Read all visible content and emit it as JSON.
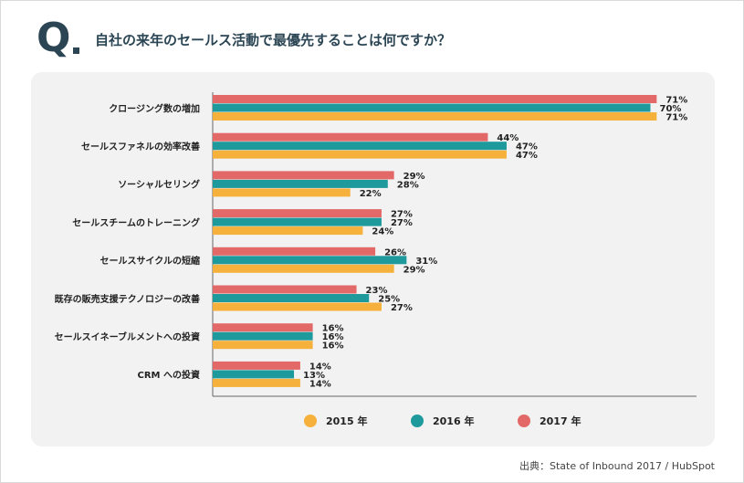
{
  "header": {
    "q_mark": "Q",
    "question": "自社の来年のセールス活動で最優先することは何ですか？"
  },
  "source": {
    "prefix": "出典：",
    "text": "State of Inbound 2017 / HubSpot"
  },
  "colors": {
    "2015": "#f5b13b",
    "2016": "#1f9a9c",
    "2017": "#e36868",
    "axis": "#666666",
    "title": "#2b4554"
  },
  "chart_data": {
    "type": "bar",
    "orientation": "horizontal",
    "categories": [
      "クロージング数の増加",
      "セールスファネルの効率改善",
      "ソーシャルセリング",
      "セールスチームのトレーニング",
      "セールスサイクルの短縮",
      "既存の販売支援テクノロジーの改善",
      "セールスイネーブルメントへの投資",
      "CRM への投資"
    ],
    "series": [
      {
        "name": "2017 年",
        "key": "2017",
        "values": [
          71,
          44,
          29,
          27,
          26,
          23,
          16,
          14
        ]
      },
      {
        "name": "2016 年",
        "key": "2016",
        "values": [
          70,
          47,
          28,
          27,
          31,
          25,
          16,
          13
        ]
      },
      {
        "name": "2015 年",
        "key": "2015",
        "values": [
          71,
          47,
          22,
          24,
          29,
          27,
          16,
          14
        ]
      }
    ],
    "value_suffix": "%",
    "xlim": [
      0,
      80
    ],
    "legend": [
      "2015 年",
      "2016 年",
      "2017 年"
    ],
    "legend_placement": "bottom",
    "grid": false
  }
}
